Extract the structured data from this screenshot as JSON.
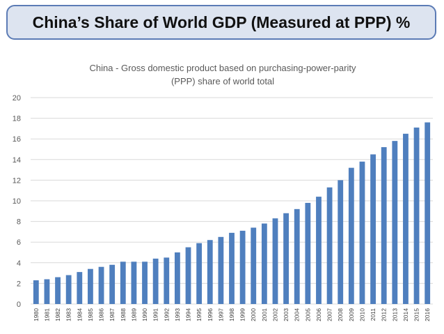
{
  "slide": {
    "title": "China’s Share of World GDP (Measured at PPP) %"
  },
  "chart_data": {
    "type": "bar",
    "title_lines": [
      "China - Gross domestic product based on purchasing-power-parity",
      "(PPP) share of world total"
    ],
    "categories": [
      "1980",
      "1981",
      "1982",
      "1983",
      "1984",
      "1985",
      "1986",
      "1987",
      "1988",
      "1989",
      "1990",
      "1991",
      "1992",
      "1993",
      "1994",
      "1995",
      "1996",
      "1997",
      "1998",
      "1999",
      "2000",
      "2001",
      "2002",
      "2003",
      "2004",
      "2005",
      "2006",
      "2007",
      "2008",
      "2009",
      "2010",
      "2011",
      "2012",
      "2013",
      "2014",
      "2015",
      "2016"
    ],
    "values": [
      2.3,
      2.4,
      2.6,
      2.8,
      3.1,
      3.4,
      3.6,
      3.8,
      4.1,
      4.1,
      4.1,
      4.4,
      4.5,
      5.0,
      5.5,
      5.9,
      6.2,
      6.5,
      6.9,
      7.1,
      7.4,
      7.8,
      8.3,
      8.8,
      9.2,
      9.8,
      10.4,
      11.3,
      12.0,
      13.2,
      13.8,
      14.5,
      15.2,
      15.8,
      16.5,
      17.1,
      17.6
    ],
    "ylim": [
      0,
      20
    ],
    "yticks": [
      0,
      2,
      4,
      6,
      8,
      10,
      12,
      14,
      16,
      18,
      20
    ],
    "grid": true,
    "bar_color": "#4f7fbe"
  }
}
